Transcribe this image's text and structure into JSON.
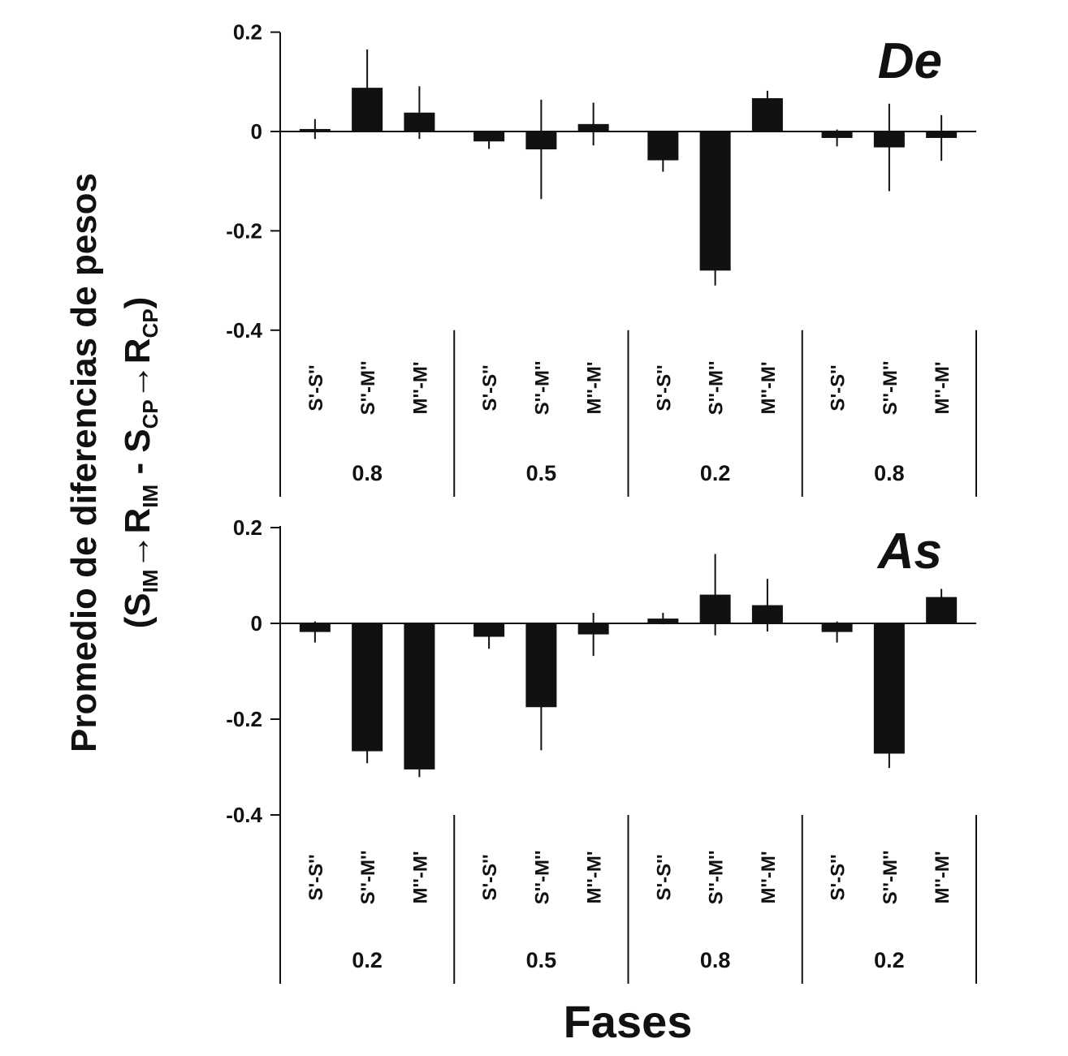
{
  "chart_data": {
    "type": "bar",
    "xlabel": "Fases",
    "ylabel": {
      "line1": "Promedio de diferencias de pesos",
      "line2": {
        "open": "(S",
        "sub1": "IM",
        "mid1": "→R",
        "sub2": "IM",
        "mid2": " - S",
        "sub3": "CP",
        "mid3": "→R",
        "sub4": "CP",
        "close": ")"
      }
    },
    "ylim": [
      -0.4,
      0.2
    ],
    "yticks": [
      0.2,
      0,
      -0.2,
      -0.4
    ],
    "ytick_labels": [
      "0.2",
      "0",
      "-0.2",
      "-0.4"
    ],
    "categories": [
      "S'-S''",
      "S''-M''",
      "M''-M'"
    ],
    "panels": [
      {
        "title": "De",
        "phases": [
          {
            "label": "0.8",
            "values": [
              0.005,
              0.088,
              0.038
            ],
            "errors": [
              0.02,
              0.077,
              0.053
            ]
          },
          {
            "label": "0.5",
            "values": [
              -0.02,
              -0.036,
              0.015
            ],
            "errors": [
              0.015,
              0.1,
              0.043
            ]
          },
          {
            "label": "0.2",
            "values": [
              -0.058,
              -0.28,
              0.067
            ],
            "errors": [
              0.023,
              0.03,
              0.015
            ]
          },
          {
            "label": "0.8",
            "values": [
              -0.013,
              -0.032,
              -0.013
            ],
            "errors": [
              0.017,
              0.088,
              0.046
            ]
          }
        ]
      },
      {
        "title": "As",
        "phases": [
          {
            "label": "0.2",
            "values": [
              -0.018,
              -0.267,
              -0.305
            ],
            "errors": [
              0.022,
              0.025,
              0.016
            ]
          },
          {
            "label": "0.5",
            "values": [
              -0.028,
              -0.175,
              -0.023
            ],
            "errors": [
              0.025,
              0.09,
              0.045
            ]
          },
          {
            "label": "0.8",
            "values": [
              0.01,
              0.06,
              0.038
            ],
            "errors": [
              0.012,
              0.085,
              0.055
            ]
          },
          {
            "label": "0.2",
            "values": [
              -0.018,
              -0.272,
              0.055
            ],
            "errors": [
              0.022,
              0.03,
              0.017
            ]
          }
        ]
      }
    ]
  }
}
